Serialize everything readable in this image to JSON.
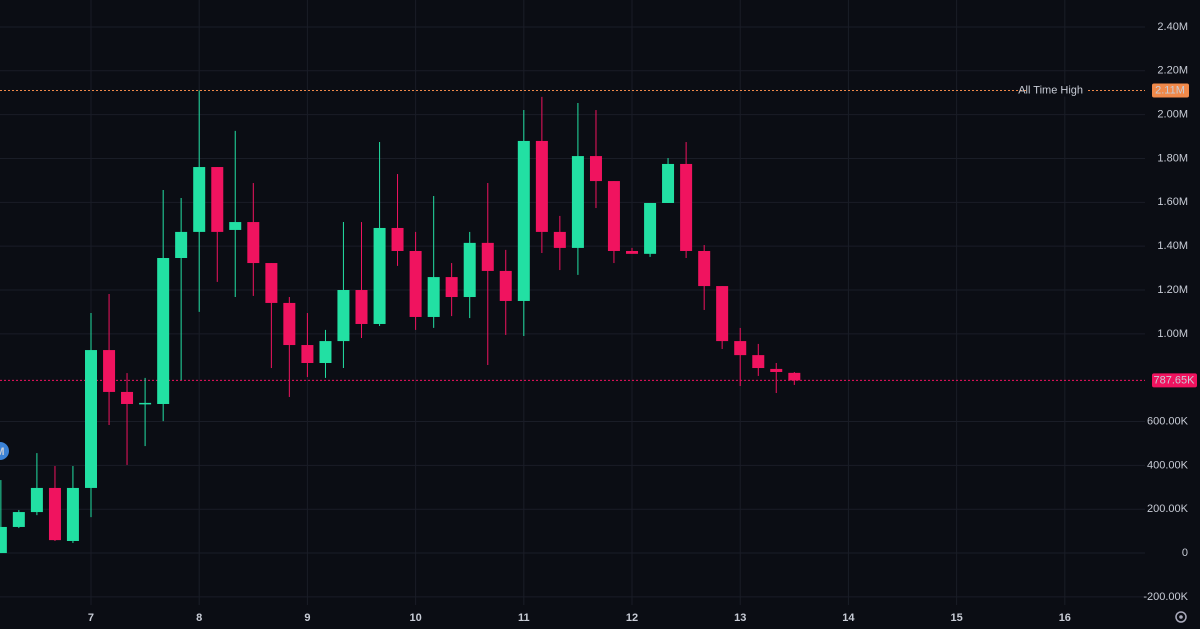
{
  "chart_data": {
    "type": "candlestick",
    "x": [
      6.167,
      6.333,
      6.5,
      6.667,
      6.833,
      7,
      7.167,
      7.333,
      7.5,
      7.667,
      7.833,
      8,
      8.167,
      8.333,
      8.5,
      8.667,
      8.833,
      9,
      9.167,
      9.333,
      9.5,
      9.667,
      9.833,
      10,
      10.167,
      10.333,
      10.5,
      10.667,
      10.833,
      11,
      11.167,
      11.333,
      11.5,
      11.667,
      11.833,
      12,
      12.167,
      12.333,
      12.5,
      12.667,
      12.833,
      13,
      13.167,
      13.333,
      13.5
    ],
    "open": [
      0,
      119000,
      187000,
      297000,
      55000,
      297000,
      926000,
      735000,
      680000,
      680000,
      1346000,
      1465000,
      1761000,
      1474000,
      1510000,
      1323000,
      1141000,
      949000,
      867000,
      967000,
      1200000,
      1045000,
      1483000,
      1378000,
      1077000,
      1259000,
      1168000,
      1415000,
      1287000,
      1150000,
      1880000,
      1465000,
      1392000,
      1811000,
      1697000,
      1378000,
      1365000,
      1597000,
      1775000,
      1378000,
      1218000,
      967000,
      903000,
      840000,
      822000
    ],
    "high": [
      333000,
      196000,
      456000,
      397000,
      397000,
      1095000,
      1182000,
      821000,
      799000,
      1656000,
      1620000,
      2110000,
      1761000,
      1926000,
      1688000,
      1323000,
      1168000,
      1095000,
      1018000,
      1510000,
      1510000,
      1875000,
      1729000,
      1465000,
      1629000,
      1323000,
      1465000,
      1688000,
      1383000,
      2021000,
      2081000,
      1538000,
      2053000,
      2021000,
      1697000,
      1392000,
      1597000,
      1802000,
      1875000,
      1405000,
      1218000,
      1027000,
      954000,
      867000,
      826000
    ],
    "low": [
      0,
      114000,
      173000,
      55000,
      46000,
      164000,
      584000,
      402000,
      488000,
      602000,
      789000,
      1100000,
      1237000,
      1168000,
      1173000,
      844000,
      712000,
      803000,
      799000,
      844000,
      981000,
      1036000,
      1310000,
      1018000,
      1027000,
      1081000,
      1072000,
      858000,
      995000,
      990000,
      1369000,
      1291000,
      1269000,
      1574000,
      1323000,
      1365000,
      1351000,
      1597000,
      1346000,
      1109000,
      931000,
      762000,
      808000,
      730000,
      767000
    ],
    "close": [
      119000,
      187000,
      297000,
      59000,
      297000,
      926000,
      735000,
      680000,
      685000,
      1346000,
      1465000,
      1761000,
      1465000,
      1510000,
      1323000,
      1141000,
      949000,
      867000,
      967000,
      1200000,
      1045000,
      1483000,
      1378000,
      1077000,
      1259000,
      1168000,
      1415000,
      1287000,
      1150000,
      1880000,
      1465000,
      1392000,
      1811000,
      1697000,
      1378000,
      1365000,
      1597000,
      1775000,
      1378000,
      1218000,
      967000,
      903000,
      844000,
      826000,
      787650
    ],
    "up_color": "#22e0a3",
    "down_color": "#f0135f",
    "xlim": [
      6.159,
      16.741
    ],
    "xticks": [
      7,
      8,
      9,
      10,
      11,
      12,
      13,
      14,
      15,
      16
    ],
    "ylim": [
      -237000,
      2523000
    ],
    "yticks": [
      {
        "value": -200000,
        "label": "-200.00K"
      },
      0,
      {
        "value": 200000,
        "label": "200.00K"
      },
      {
        "value": 400000,
        "label": "400.00K"
      },
      {
        "value": 600000,
        "label": "600.00K"
      },
      {
        "value": 1000000,
        "label": "1.00M"
      },
      {
        "value": 1200000,
        "label": "1.20M"
      },
      {
        "value": 1400000,
        "label": "1.40M"
      },
      {
        "value": 1600000,
        "label": "1.60M"
      },
      {
        "value": 1800000,
        "label": "1.80M"
      },
      {
        "value": 2000000,
        "label": "2.00M"
      },
      {
        "value": 2200000,
        "label": "2.20M"
      },
      {
        "value": 2400000,
        "label": "2.40M"
      }
    ],
    "grid": true,
    "ath_line": {
      "name": "All Time High",
      "value": 2110000,
      "label": "2.11M",
      "color": "#f0894a"
    },
    "price_line": {
      "value": 787650,
      "label": "787.65K",
      "color": "#f0135f"
    },
    "marker_label": "M"
  }
}
